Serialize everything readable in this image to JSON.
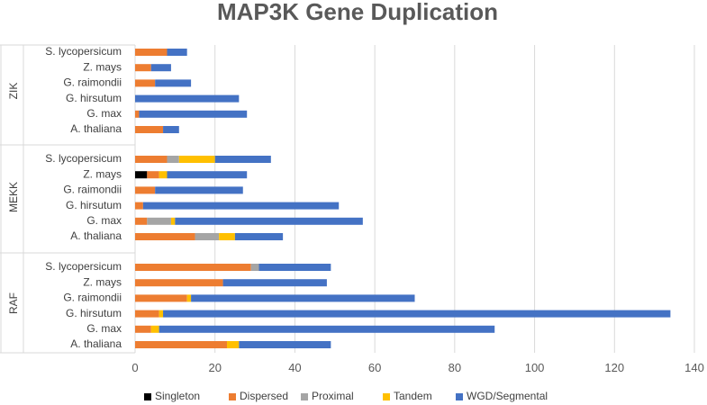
{
  "chart_data": {
    "type": "bar",
    "orientation": "horizontal",
    "stacked": true,
    "title": "MAP3K Gene Duplication",
    "xlim": [
      0,
      140
    ],
    "xticks": [
      0,
      20,
      40,
      60,
      80,
      100,
      120,
      140
    ],
    "grid": true,
    "legend_position": "bottom",
    "series_names": [
      "Singleton",
      "Dispersed",
      "Proximal",
      "Tandem",
      "WGD/Segmental"
    ],
    "colors": {
      "Singleton": "#000000",
      "Dispersed": "#ED7D31",
      "Proximal": "#A5A5A5",
      "Tandem": "#FFC000",
      "WGD/Segmental": "#4472C4"
    },
    "groups": [
      {
        "name": "ZIK",
        "rows": [
          {
            "species": "S. lycopersicum",
            "values": [
              0,
              8,
              0,
              0,
              5
            ]
          },
          {
            "species": "Z. mays",
            "values": [
              0,
              4,
              0,
              0,
              5
            ]
          },
          {
            "species": "G. raimondii",
            "values": [
              0,
              5,
              0,
              0,
              9
            ]
          },
          {
            "species": "G. hirsutum",
            "values": [
              0,
              0,
              0,
              0,
              26
            ]
          },
          {
            "species": "G. max",
            "values": [
              0,
              1,
              0,
              0,
              27
            ]
          },
          {
            "species": "A. thaliana",
            "values": [
              0,
              7,
              0,
              0,
              4
            ]
          }
        ]
      },
      {
        "name": "MEKK",
        "rows": [
          {
            "species": "S. lycopersicum",
            "values": [
              0,
              8,
              3,
              9,
              14
            ]
          },
          {
            "species": "Z. mays",
            "values": [
              3,
              3,
              0,
              2,
              20
            ]
          },
          {
            "species": "G. raimondii",
            "values": [
              0,
              5,
              0,
              0,
              22
            ]
          },
          {
            "species": "G. hirsutum",
            "values": [
              0,
              2,
              0,
              0,
              49
            ]
          },
          {
            "species": "G. max",
            "values": [
              0,
              3,
              6,
              1,
              47
            ]
          },
          {
            "species": "A. thaliana",
            "values": [
              0,
              15,
              6,
              4,
              12
            ]
          }
        ]
      },
      {
        "name": "RAF",
        "rows": [
          {
            "species": "S. lycopersicum",
            "values": [
              0,
              29,
              2,
              0,
              18
            ]
          },
          {
            "species": "Z. mays",
            "values": [
              0,
              22,
              0,
              0,
              26
            ]
          },
          {
            "species": "G. raimondii",
            "values": [
              0,
              13,
              0,
              1,
              56
            ]
          },
          {
            "species": "G. hirsutum",
            "values": [
              0,
              6,
              0,
              1,
              127
            ]
          },
          {
            "species": "G. max",
            "values": [
              0,
              4,
              0,
              2,
              84
            ]
          },
          {
            "species": "A. thaliana",
            "values": [
              0,
              23,
              0,
              3,
              23
            ]
          }
        ]
      }
    ]
  }
}
